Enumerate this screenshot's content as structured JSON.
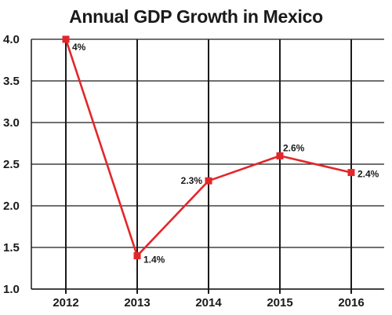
{
  "colors": {
    "line": "#e3262a",
    "marker": "#e3262a",
    "grid": "#1a1a1a",
    "text": "#1a1a1a"
  },
  "chart_data": {
    "type": "line",
    "title": "Annual GDP Growth in Mexico",
    "xlabel": "",
    "ylabel": "",
    "categories": [
      "2012",
      "2013",
      "2014",
      "2015",
      "2016"
    ],
    "series": [
      {
        "values": [
          4.0,
          1.4,
          2.3,
          2.6,
          2.4
        ]
      }
    ],
    "data_labels": [
      "4%",
      "1.4%",
      "2.3%",
      "2.6%",
      "2.4%"
    ],
    "ylim": [
      1.0,
      4.0
    ],
    "yticks": [
      "1.0",
      "1.5",
      "2.0",
      "2.5",
      "3.0",
      "3.5",
      "4.0"
    ],
    "grid": true,
    "legend": "none"
  }
}
